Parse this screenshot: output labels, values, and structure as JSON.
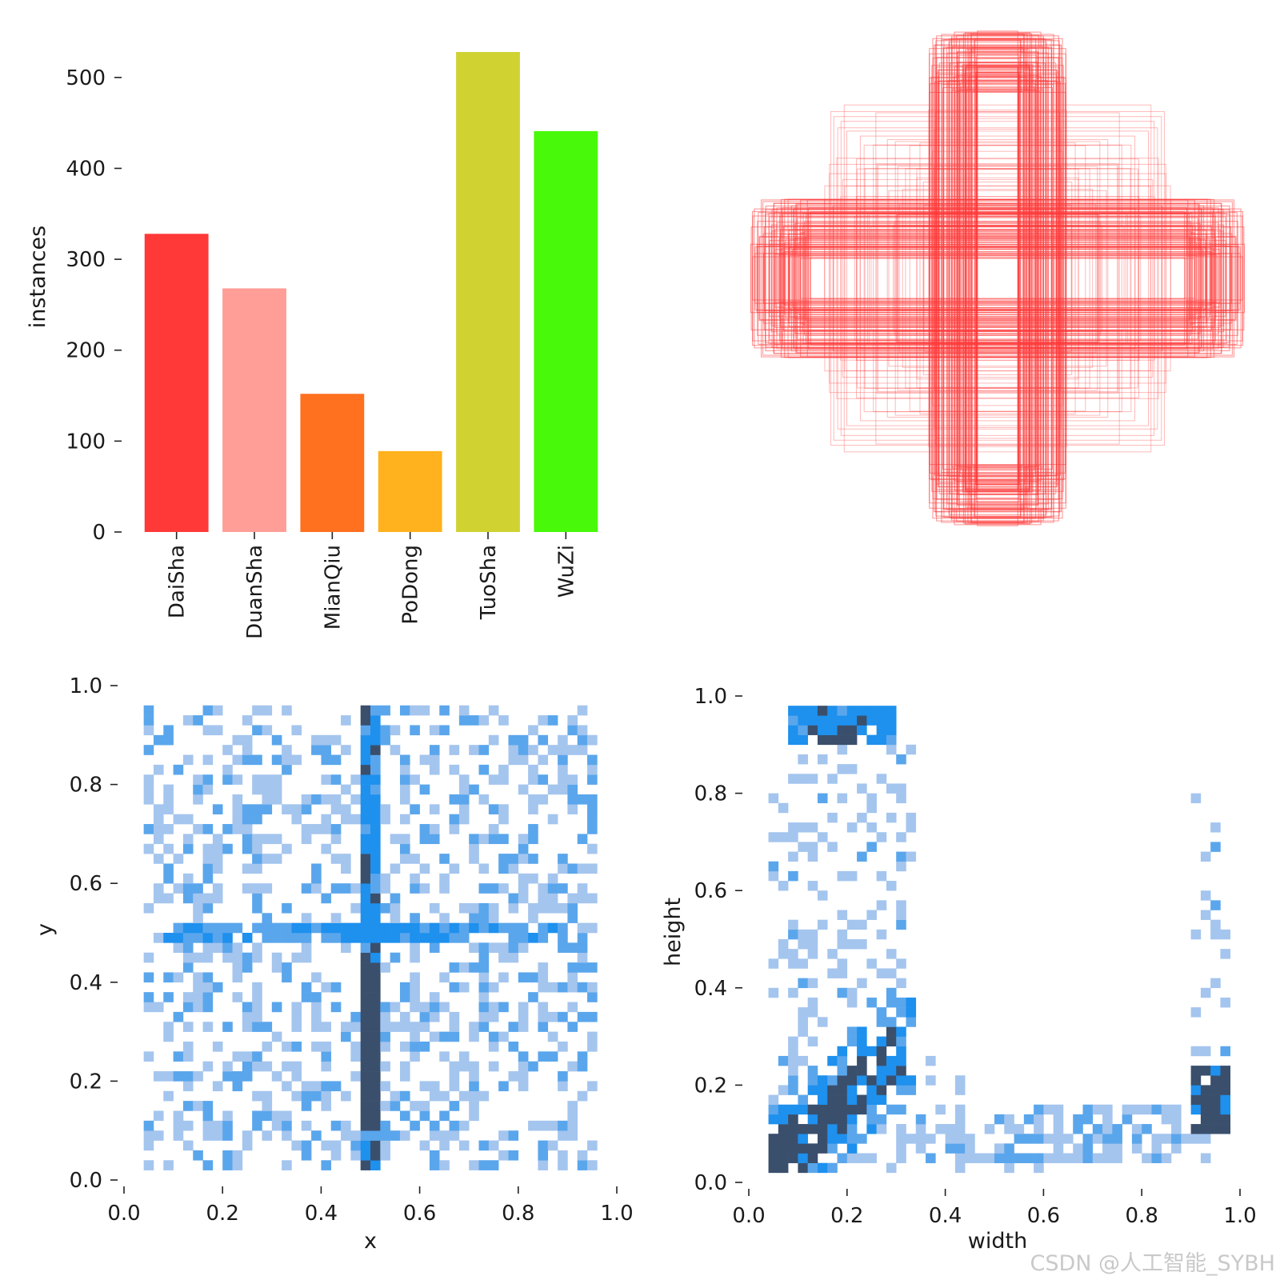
{
  "watermark": "CSDN @人工智能_SYBH",
  "chart_data": [
    {
      "type": "bar",
      "categories": [
        "DaiSha",
        "DuanSha",
        "MianQiu",
        "PoDong",
        "TuoSha",
        "WuZi"
      ],
      "values": [
        328,
        268,
        152,
        89,
        528,
        441
      ],
      "colors": [
        "#ff3838",
        "#ff9d97",
        "#ff701f",
        "#ffb21d",
        "#cfd231",
        "#48f90a"
      ],
      "ylabel": "instances",
      "ylim": [
        0,
        550
      ],
      "yticks": [
        0,
        100,
        200,
        300,
        400,
        500
      ]
    },
    {
      "type": "other",
      "description_color": "#ff3838",
      "box_groups": [
        {
          "kind": "horizontal",
          "width_range": [
            0.75,
            1.0
          ],
          "height_range": [
            0.08,
            0.32
          ],
          "count": 90
        },
        {
          "kind": "vertical",
          "width_range": [
            0.08,
            0.28
          ],
          "height_range": [
            0.75,
            1.0
          ],
          "count": 90
        },
        {
          "kind": "square",
          "width_range": [
            0.2,
            0.7
          ],
          "height_range": [
            0.2,
            0.7
          ],
          "count": 60
        }
      ]
    },
    {
      "type": "heatmap",
      "xlabel": "x",
      "ylabel": "y",
      "xlim": [
        0,
        1
      ],
      "ylim": [
        0,
        1
      ],
      "xticks": [
        0.0,
        0.2,
        0.4,
        0.6,
        0.8,
        1.0
      ],
      "yticks": [
        0.0,
        0.2,
        0.4,
        0.6,
        0.8,
        1.0
      ],
      "tick_labels": [
        "0.0",
        "0.2",
        "0.4",
        "0.6",
        "0.8",
        "1.0"
      ],
      "bins": 50,
      "colormap": [
        "#a4c5ee",
        "#5aa6ec",
        "#1e90ee",
        "#3a4f6c"
      ]
    },
    {
      "type": "heatmap",
      "xlabel": "width",
      "ylabel": "height",
      "xlim": [
        0,
        1
      ],
      "ylim": [
        0,
        1
      ],
      "xticks": [
        0.0,
        0.2,
        0.4,
        0.6,
        0.8,
        1.0
      ],
      "yticks": [
        0.0,
        0.2,
        0.4,
        0.6,
        0.8,
        1.0
      ],
      "tick_labels": [
        "0.0",
        "0.2",
        "0.4",
        "0.6",
        "0.8",
        "1.0"
      ],
      "bins": 50,
      "colormap": [
        "#a4c5ee",
        "#5aa6ec",
        "#1e90ee",
        "#3a4f6c"
      ]
    }
  ]
}
